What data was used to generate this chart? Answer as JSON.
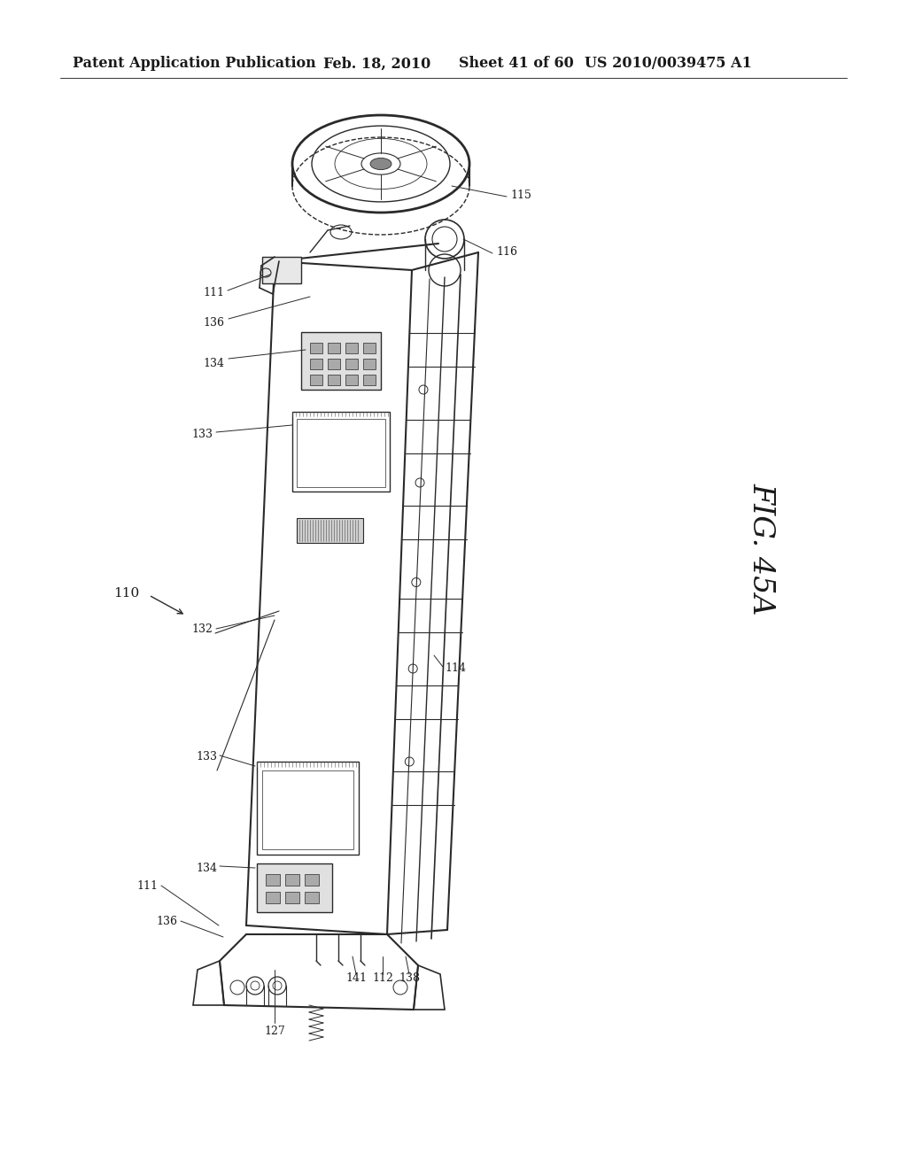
{
  "bg_color": "#ffffff",
  "header_text": "Patent Application Publication",
  "header_date": "Feb. 18, 2010",
  "header_sheet": "Sheet 41 of 60",
  "header_patent": "US 2010/0039475 A1",
  "fig_label": "FIG. 45A",
  "text_color": "#1a1a1a",
  "line_color": "#2a2a2a",
  "font_size_header": 11.5,
  "font_size_label": 9,
  "font_size_fig": 24,
  "dpi": 100,
  "figw": 10.24,
  "figh": 13.2
}
